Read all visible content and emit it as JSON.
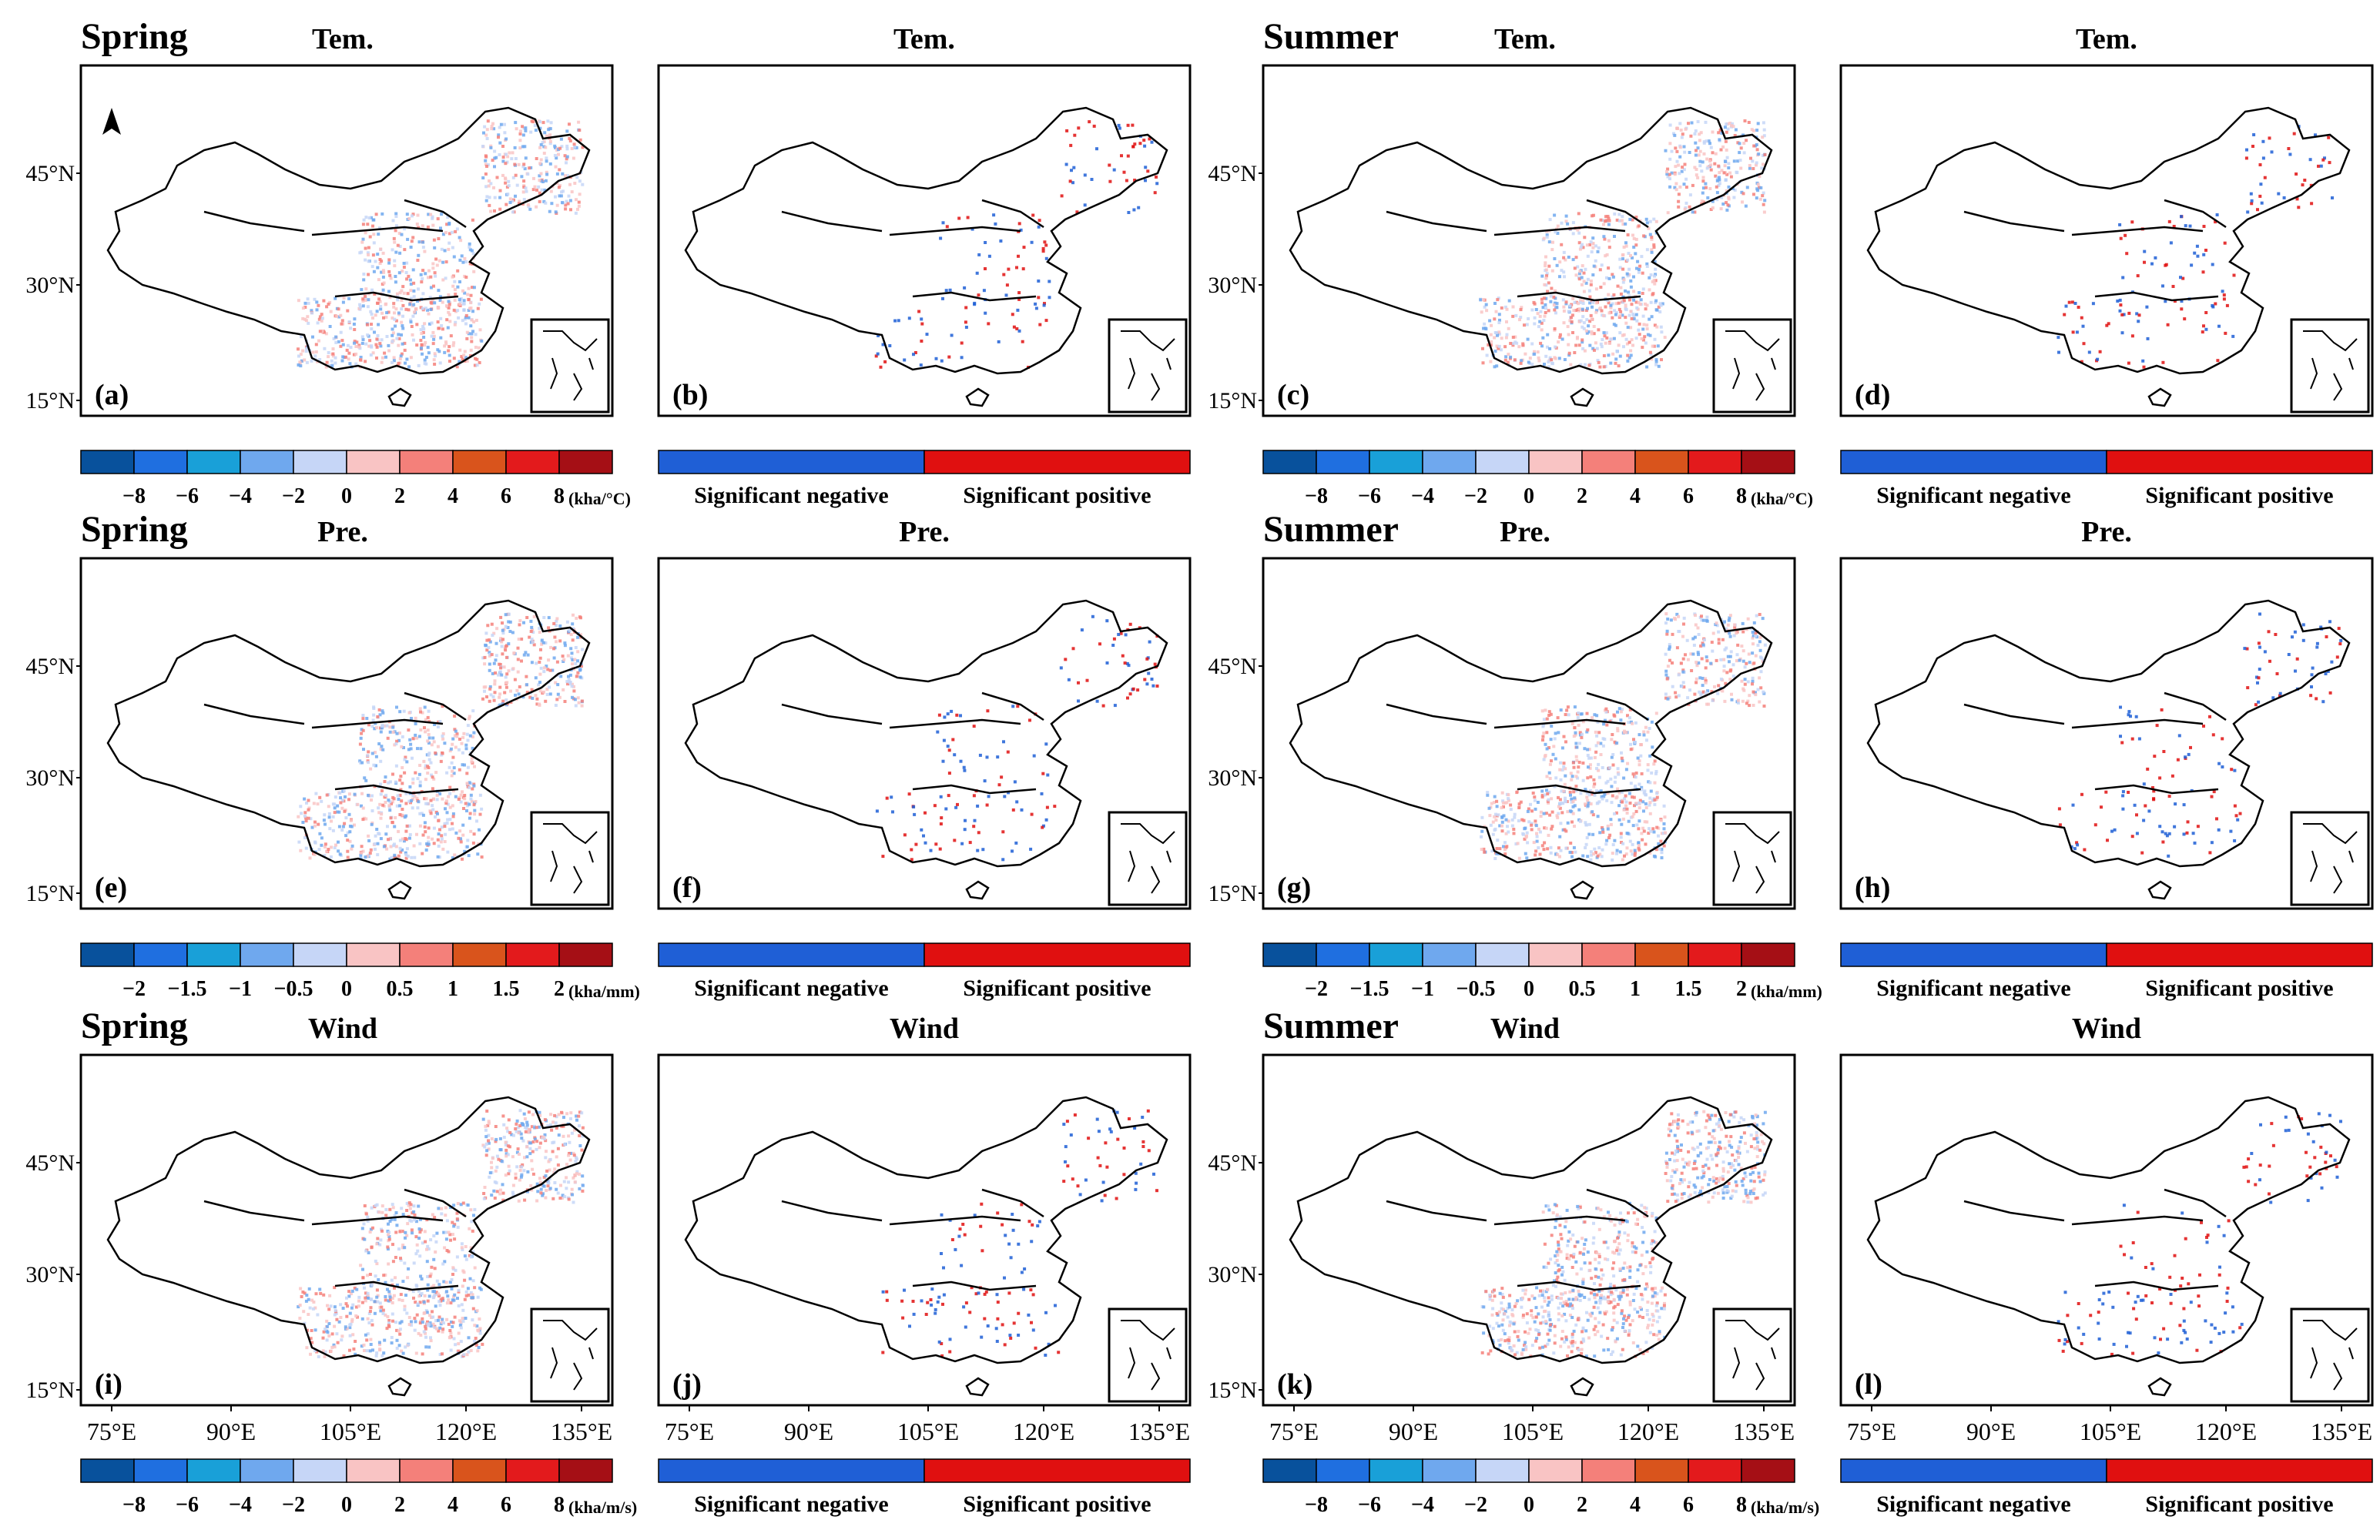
{
  "figure": {
    "seasons": [
      "Spring",
      "Summer"
    ],
    "panels": [
      {
        "letter": "(a)",
        "season": "Spring",
        "variable": "Tem.",
        "type": "slope"
      },
      {
        "letter": "(b)",
        "season": "",
        "variable": "Tem.",
        "type": "significance"
      },
      {
        "letter": "(c)",
        "season": "Summer",
        "variable": "Tem.",
        "type": "slope"
      },
      {
        "letter": "(d)",
        "season": "",
        "variable": "Tem.",
        "type": "significance"
      },
      {
        "letter": "(e)",
        "season": "Spring",
        "variable": "Pre.",
        "type": "slope"
      },
      {
        "letter": "(f)",
        "season": "",
        "variable": "Pre.",
        "type": "significance"
      },
      {
        "letter": "(g)",
        "season": "Summer",
        "variable": "Pre.",
        "type": "slope"
      },
      {
        "letter": "(h)",
        "season": "",
        "variable": "Pre.",
        "type": "significance"
      },
      {
        "letter": "(i)",
        "season": "Spring",
        "variable": "Wind",
        "type": "slope"
      },
      {
        "letter": "(j)",
        "season": "",
        "variable": "Wind",
        "type": "significance"
      },
      {
        "letter": "(k)",
        "season": "Summer",
        "variable": "Wind",
        "type": "slope"
      },
      {
        "letter": "(l)",
        "season": "",
        "variable": "Wind",
        "type": "significance"
      }
    ],
    "lat_labels": [
      "45°N",
      "30°N",
      "15°N"
    ],
    "lon_labels": [
      "75°E",
      "90°E",
      "105°E",
      "120°E",
      "135°E"
    ],
    "colorbars": {
      "tem": {
        "ticks": [
          "−8",
          "−6",
          "−4",
          "−2",
          "0",
          "2",
          "4",
          "6",
          "8"
        ],
        "unit": "(kha/°C)"
      },
      "pre": {
        "ticks": [
          "−2",
          "−1.5",
          "−1",
          "−0.5",
          "0",
          "0.5",
          "1",
          "1.5",
          "2"
        ],
        "unit": "(kha/mm)"
      },
      "wind": {
        "ticks": [
          "−8",
          "−6",
          "−4",
          "−2",
          "0",
          "2",
          "4",
          "6",
          "8"
        ],
        "unit": "(kha/m/s)"
      }
    },
    "significance_legend": {
      "negative": "Significant negative",
      "positive": "Significant positive"
    },
    "colors": {
      "diverging": [
        "#08519c",
        "#1f6fe0",
        "#19a0d8",
        "#6fa8ee",
        "#c6d6f7",
        "#f9c4c4",
        "#f4807a",
        "#d9541c",
        "#e31a1c",
        "#a50f15"
      ],
      "sig_negative": "#1f5fd6",
      "sig_positive": "#e01010"
    }
  }
}
